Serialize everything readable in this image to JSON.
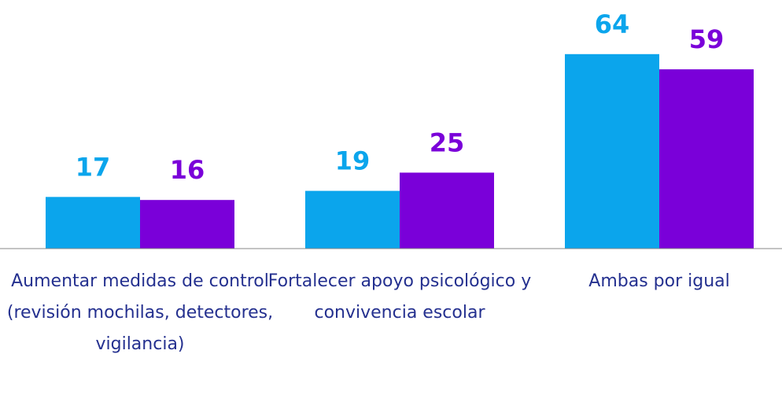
{
  "chart_data": {
    "type": "bar",
    "categories": [
      "Aumentar medidas de control (revisión mochilas, detectores, vigilancia)",
      "Fortalecer apoyo psicológico y convivencia escolar",
      "Ambas por igual"
    ],
    "series": [
      {
        "color": "#0ba5ec",
        "values": [
          17,
          19,
          64
        ]
      },
      {
        "color": "#7a00d9",
        "values": [
          16,
          25,
          59
        ]
      }
    ],
    "ylim": [
      0,
      80
    ]
  }
}
